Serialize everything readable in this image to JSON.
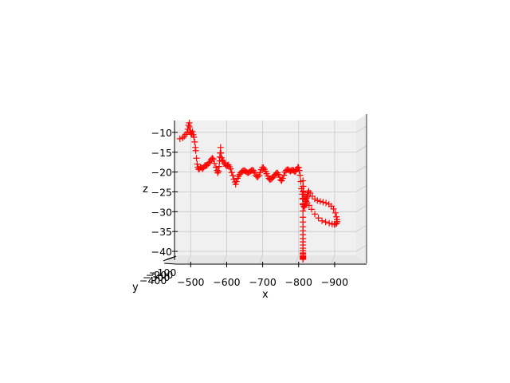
{
  "chart_data": {
    "type": "scatter",
    "projection": "3d",
    "marker": "+",
    "marker_color": "#ff0000",
    "pane_color": "#f0f0f0",
    "grid": true,
    "xlabel": "x",
    "ylabel": "y",
    "zlabel": "z",
    "x_ticks": [
      "−500",
      "−600",
      "−700",
      "−800",
      "−900"
    ],
    "x_tick_values": [
      -500,
      -600,
      -700,
      -800,
      -900
    ],
    "xlim": [
      -455,
      -960
    ],
    "y_ticks": [
      "−100",
      "−200",
      "−300",
      "−400"
    ],
    "z_ticks": [
      "−10",
      "−15",
      "−20",
      "−25",
      "−30",
      "−35",
      "−40"
    ],
    "z_tick_values": [
      -10,
      -15,
      -20,
      -25,
      -30,
      -35,
      -40
    ],
    "zlim": [
      -7,
      -41
    ],
    "series": [
      {
        "x": [
          -470,
          -478,
          -482,
          -486,
          -490,
          -492,
          -494,
          -496,
          -497,
          -499,
          -501,
          -503,
          -505,
          -507,
          -509,
          -511,
          -513,
          -514,
          -516,
          -518,
          -520,
          -522,
          -524,
          -527,
          -530,
          -533,
          -536,
          -539,
          -542,
          -545,
          -548,
          -551,
          -554,
          -557,
          -560,
          -563,
          -566,
          -570,
          -573,
          -575,
          -577,
          -579,
          -580,
          -581,
          -582,
          -583,
          -584,
          -586,
          -588,
          -590,
          -593,
          -596,
          -599,
          -602,
          -605,
          -608,
          -611,
          -614,
          -617,
          -620,
          -623,
          -625,
          -627,
          -630,
          -633,
          -636,
          -639,
          -642,
          -645,
          -648,
          -651,
          -654,
          -657,
          -660,
          -663,
          -666,
          -669,
          -672,
          -675,
          -678,
          -681,
          -684,
          -687,
          -690,
          -693,
          -696,
          -699,
          -702,
          -705,
          -708,
          -711,
          -714,
          -717,
          -720,
          -723,
          -726,
          -729,
          -732,
          -735,
          -738,
          -741,
          -744,
          -747,
          -750,
          -753,
          -756,
          -759,
          -762,
          -765,
          -768,
          -771,
          -774,
          -777,
          -780,
          -783,
          -786,
          -789,
          -792,
          -795,
          -798,
          -800,
          -802,
          -804,
          -806,
          -808,
          -810,
          -811,
          -812,
          -814,
          -816,
          -818,
          -820,
          -822,
          -823,
          -824,
          -825,
          -826,
          -828,
          -832,
          -838,
          -845,
          -852,
          -860,
          -868,
          -876,
          -884,
          -891,
          -897,
          -902,
          -905,
          -907,
          -907,
          -906,
          -903,
          -899,
          -893,
          -885,
          -875,
          -865,
          -855,
          -845,
          -836,
          -829,
          -824,
          -821,
          -820,
          -818,
          -814,
          -813,
          -813,
          -812,
          -812,
          -812,
          -812,
          -812,
          -812,
          -812,
          -812,
          -812,
          -812,
          -812,
          -812,
          -812,
          -812,
          -812,
          -812,
          -812,
          -812,
          -812,
          -812,
          -812,
          -812,
          -812,
          -812
        ],
        "z": [
          -11.6,
          -11.4,
          -11.0,
          -10.5,
          -10.0,
          -9.2,
          -8.2,
          -7.6,
          -8.6,
          -9.6,
          -10.2,
          -10.5,
          -9.8,
          -10.6,
          -11.2,
          -12.4,
          -13.8,
          -14.6,
          -16.5,
          -18.0,
          -18.8,
          -19.3,
          -19.2,
          -18.8,
          -18.9,
          -19.2,
          -18.8,
          -18.4,
          -18.3,
          -18.4,
          -18.0,
          -17.6,
          -17.3,
          -16.8,
          -16.5,
          -16.7,
          -17.8,
          -18.8,
          -19.6,
          -20.2,
          -19.8,
          -18.6,
          -17.2,
          -16.2,
          -15.2,
          -13.8,
          -15.2,
          -16.4,
          -17.0,
          -17.3,
          -17.7,
          -18.1,
          -18.5,
          -18.3,
          -18.2,
          -18.7,
          -19.2,
          -20.1,
          -20.9,
          -21.8,
          -22.5,
          -23.1,
          -22.4,
          -21.6,
          -21.1,
          -20.6,
          -20.2,
          -19.9,
          -19.7,
          -19.6,
          -19.7,
          -19.9,
          -20.1,
          -20.2,
          -20.0,
          -19.8,
          -19.6,
          -19.5,
          -19.7,
          -20.2,
          -20.8,
          -21.2,
          -21.2,
          -20.8,
          -20.1,
          -19.4,
          -18.9,
          -18.9,
          -19.3,
          -19.8,
          -20.4,
          -21.0,
          -21.6,
          -21.9,
          -21.8,
          -21.6,
          -21.3,
          -20.9,
          -20.6,
          -20.3,
          -20.2,
          -20.6,
          -21.3,
          -22.0,
          -22.2,
          -21.6,
          -20.8,
          -20.0,
          -19.6,
          -19.4,
          -19.4,
          -19.6,
          -19.8,
          -19.6,
          -19.5,
          -19.6,
          -19.9,
          -19.8,
          -19.3,
          -18.8,
          -18.9,
          -19.6,
          -20.8,
          -22.4,
          -24.2,
          -25.6,
          -26.8,
          -28.0,
          -28.6,
          -28.9,
          -28.3,
          -27.3,
          -26.6,
          -26.3,
          -26.2,
          -25.8,
          -25.2,
          -24.8,
          -25.3,
          -26.1,
          -26.8,
          -27.2,
          -27.4,
          -27.6,
          -27.8,
          -28.1,
          -28.6,
          -29.3,
          -30.3,
          -31.3,
          -32.0,
          -32.5,
          -32.9,
          -33.1,
          -33.2,
          -33.1,
          -32.9,
          -32.6,
          -32.3,
          -31.6,
          -30.6,
          -29.4,
          -28.4,
          -27.8,
          -27.4,
          -27.0,
          -26.2,
          -25.6,
          -24.8,
          -23.6,
          -22.2,
          -23.6,
          -25.0,
          -26.6,
          -28.2,
          -29.8,
          -31.4,
          -32.6,
          -33.8,
          -34.8,
          -35.8,
          -36.8,
          -37.6,
          -38.4,
          -39.2,
          -39.8,
          -40.4,
          -41.0,
          -41.3,
          -41.6,
          -41.8,
          -42.0,
          -41.4,
          -40.6
        ]
      }
    ]
  }
}
